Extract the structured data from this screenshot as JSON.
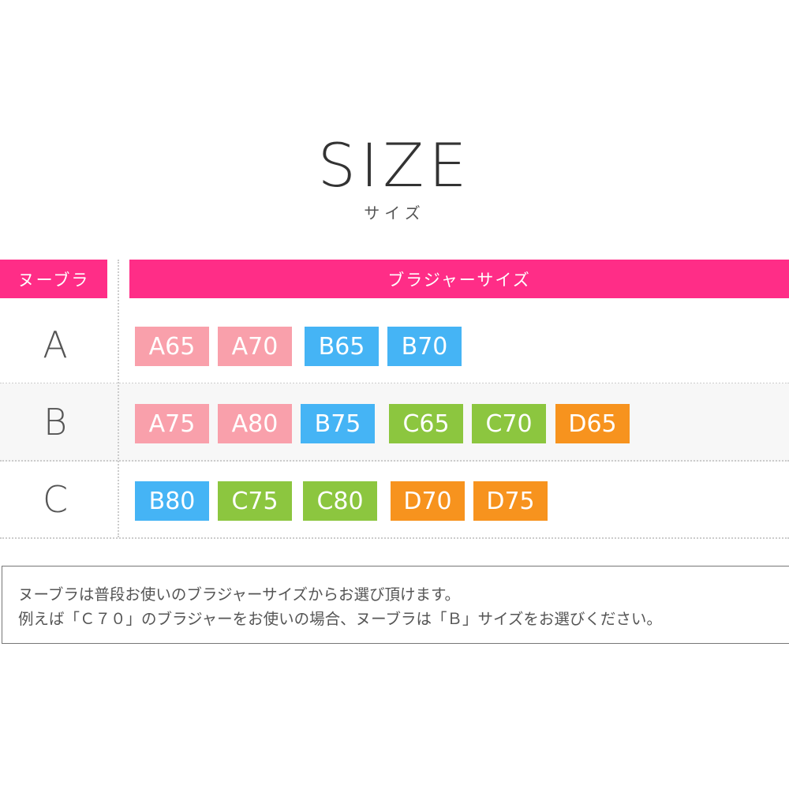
{
  "title": "SIZE",
  "subtitle": "サイズ",
  "header": {
    "left": "ヌーブラ",
    "right": "ブラジャーサイズ"
  },
  "colors": {
    "header": "#ff2d87",
    "A": "#f9a0ab",
    "B": "#45b4f5",
    "C": "#8cc63f",
    "D": "#f7931e"
  },
  "rows": [
    {
      "label": "A",
      "badges": [
        {
          "label": "A65",
          "cup": "A"
        },
        {
          "label": "A70",
          "cup": "A"
        },
        {
          "label": "B65",
          "cup": "B"
        },
        {
          "label": "B70",
          "cup": "B"
        }
      ]
    },
    {
      "label": "B",
      "badges": [
        {
          "label": "A75",
          "cup": "A"
        },
        {
          "label": "A80",
          "cup": "A"
        },
        {
          "label": "B75",
          "cup": "B"
        },
        {
          "label": "C65",
          "cup": "C"
        },
        {
          "label": "C70",
          "cup": "C"
        },
        {
          "label": "D65",
          "cup": "D"
        }
      ]
    },
    {
      "label": "C",
      "badges": [
        {
          "label": "B80",
          "cup": "B"
        },
        {
          "label": "C75",
          "cup": "C"
        },
        {
          "label": "C80",
          "cup": "C"
        },
        {
          "label": "D70",
          "cup": "D"
        },
        {
          "label": "D75",
          "cup": "D"
        }
      ]
    }
  ],
  "note": {
    "line1": "ヌーブラは普段お使いのブラジャーサイズからお選び頂けます。",
    "line2": "例えば「Ｃ７０」のブラジャーをお使いの場合、ヌーブラは「Ｂ」サイズをお選びください。"
  }
}
